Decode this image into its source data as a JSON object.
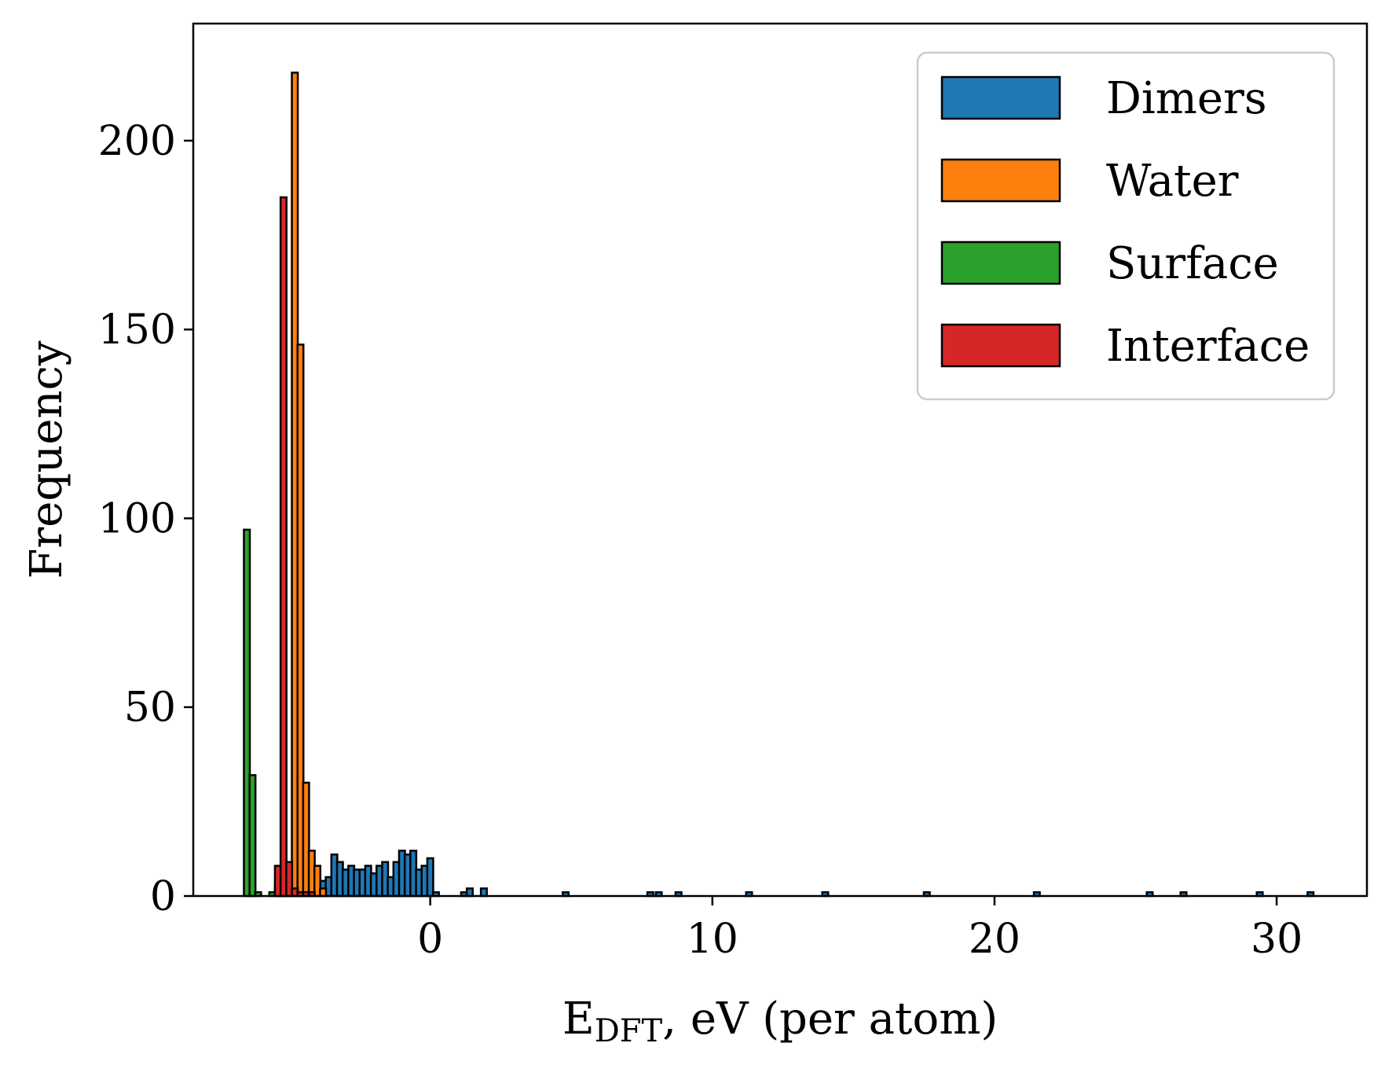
{
  "chart_data": {
    "type": "bar",
    "title": "",
    "xlabel": "E_DFT, eV (per atom)",
    "xlabel_main": "E",
    "xlabel_sub": "DFT",
    "xlabel_rest": ", eV (per atom)",
    "ylabel": "Frequency",
    "xlim": [
      -8.4,
      33.2
    ],
    "ylim": [
      0,
      231
    ],
    "xticks": [
      0,
      10,
      20,
      30
    ],
    "xtick_labels": [
      "0",
      "10",
      "20",
      "30"
    ],
    "yticks": [
      0,
      50,
      100,
      150,
      200
    ],
    "ytick_labels": [
      "0",
      "50",
      "100",
      "150",
      "200"
    ],
    "bin_width": 0.21,
    "grid": false,
    "legend_position": "top-right",
    "series": [
      {
        "name": "Dimers",
        "color": "#1f77b4",
        "bins": [
          [
            -4.0,
            2
          ],
          [
            -3.8,
            4
          ],
          [
            -3.6,
            5
          ],
          [
            -3.4,
            11
          ],
          [
            -3.2,
            9
          ],
          [
            -3.0,
            7
          ],
          [
            -2.8,
            8
          ],
          [
            -2.6,
            7
          ],
          [
            -2.4,
            7
          ],
          [
            -2.2,
            8
          ],
          [
            -2.0,
            6
          ],
          [
            -1.8,
            8
          ],
          [
            -1.6,
            9
          ],
          [
            -1.4,
            5
          ],
          [
            -1.2,
            9
          ],
          [
            -1.0,
            12
          ],
          [
            -0.8,
            11
          ],
          [
            -0.6,
            12
          ],
          [
            -0.4,
            7
          ],
          [
            -0.2,
            8
          ],
          [
            0.0,
            10
          ],
          [
            0.2,
            1
          ],
          [
            1.2,
            1
          ],
          [
            1.4,
            2
          ],
          [
            1.9,
            2
          ],
          [
            4.8,
            1
          ],
          [
            7.8,
            1
          ],
          [
            8.1,
            1
          ],
          [
            8.8,
            1
          ],
          [
            11.3,
            1
          ],
          [
            14.0,
            1
          ],
          [
            17.6,
            1
          ],
          [
            21.5,
            1
          ],
          [
            25.5,
            1
          ],
          [
            26.7,
            1
          ],
          [
            29.4,
            1
          ],
          [
            31.2,
            1
          ]
        ]
      },
      {
        "name": "Water",
        "color": "#ff7f0e",
        "bins": [
          [
            -5.4,
            3
          ],
          [
            -5.2,
            3
          ],
          [
            -5.0,
            8
          ],
          [
            -4.8,
            218
          ],
          [
            -4.6,
            146
          ],
          [
            -4.4,
            30
          ],
          [
            -4.2,
            12
          ],
          [
            -4.0,
            8
          ],
          [
            -3.8,
            2
          ]
        ]
      },
      {
        "name": "Surface",
        "color": "#2ca02c",
        "bins": [
          [
            -6.5,
            97
          ],
          [
            -6.3,
            32
          ],
          [
            -6.1,
            1
          ],
          [
            -5.6,
            1
          ],
          [
            -5.3,
            1
          ],
          [
            -4.8,
            1
          ]
        ]
      },
      {
        "name": "Interface",
        "color": "#d62728",
        "bins": [
          [
            -5.4,
            8
          ],
          [
            -5.2,
            185
          ],
          [
            -5.0,
            9
          ],
          [
            -4.8,
            2
          ],
          [
            -4.6,
            1
          ],
          [
            -4.4,
            1
          ],
          [
            -4.2,
            1
          ]
        ]
      }
    ]
  }
}
